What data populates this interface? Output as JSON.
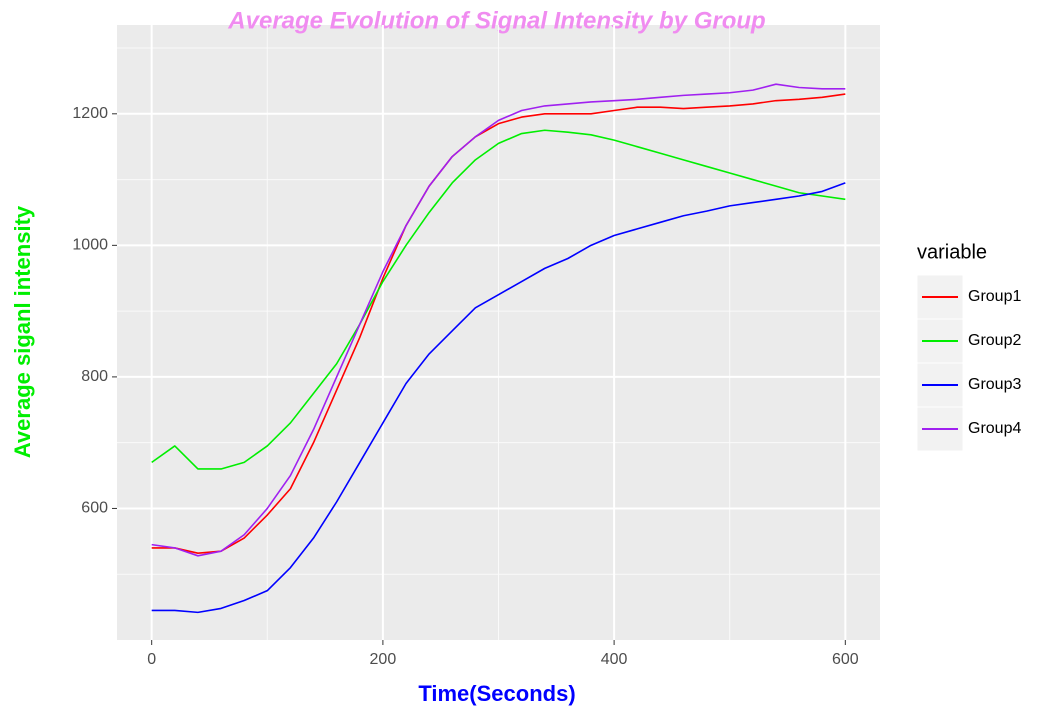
{
  "chart_data": {
    "type": "line",
    "title": "Average Evolution of Signal Intensity by Group",
    "x_label": "Time(Seconds)",
    "y_label": "Average siganl intensity",
    "legend_title": "variable",
    "legend": "right",
    "grid": true,
    "x": [
      0,
      20,
      40,
      60,
      80,
      100,
      120,
      140,
      160,
      180,
      200,
      220,
      240,
      260,
      280,
      300,
      320,
      340,
      360,
      380,
      400,
      420,
      440,
      460,
      480,
      500,
      520,
      540,
      560,
      580,
      600
    ],
    "series": [
      {
        "name": "Group1",
        "color": "#ff0000",
        "values": [
          540,
          540,
          532,
          535,
          555,
          590,
          630,
          700,
          780,
          860,
          950,
          1030,
          1090,
          1135,
          1165,
          1185,
          1195,
          1200,
          1200,
          1200,
          1205,
          1210,
          1210,
          1208,
          1210,
          1212,
          1215,
          1220,
          1222,
          1225,
          1230
        ]
      },
      {
        "name": "Group2",
        "color": "#00ee00",
        "values": [
          670,
          695,
          660,
          660,
          670,
          695,
          730,
          775,
          820,
          880,
          945,
          1000,
          1050,
          1095,
          1130,
          1155,
          1170,
          1175,
          1172,
          1168,
          1160,
          1150,
          1140,
          1130,
          1120,
          1110,
          1100,
          1090,
          1080,
          1075,
          1070
        ]
      },
      {
        "name": "Group3",
        "color": "#0000ff",
        "values": [
          445,
          445,
          442,
          448,
          460,
          475,
          510,
          555,
          610,
          670,
          730,
          790,
          835,
          870,
          905,
          925,
          945,
          965,
          980,
          1000,
          1015,
          1025,
          1035,
          1045,
          1052,
          1060,
          1065,
          1070,
          1075,
          1082,
          1095
        ]
      },
      {
        "name": "Group4",
        "color": "#a020f0",
        "values": [
          545,
          540,
          528,
          535,
          560,
          600,
          650,
          720,
          800,
          880,
          960,
          1030,
          1090,
          1135,
          1165,
          1190,
          1205,
          1212,
          1215,
          1218,
          1220,
          1222,
          1225,
          1228,
          1230,
          1232,
          1236,
          1245,
          1240,
          1238,
          1238
        ]
      }
    ],
    "xlim": [
      -30,
      630
    ],
    "ylim": [
      400,
      1335
    ],
    "xticks": [
      0,
      200,
      400,
      600
    ],
    "yticks": [
      600,
      800,
      1000,
      1200
    ],
    "x_minor_grid": [
      100,
      300,
      500
    ],
    "y_minor_grid": [
      500,
      700,
      900,
      1100,
      1300
    ]
  }
}
